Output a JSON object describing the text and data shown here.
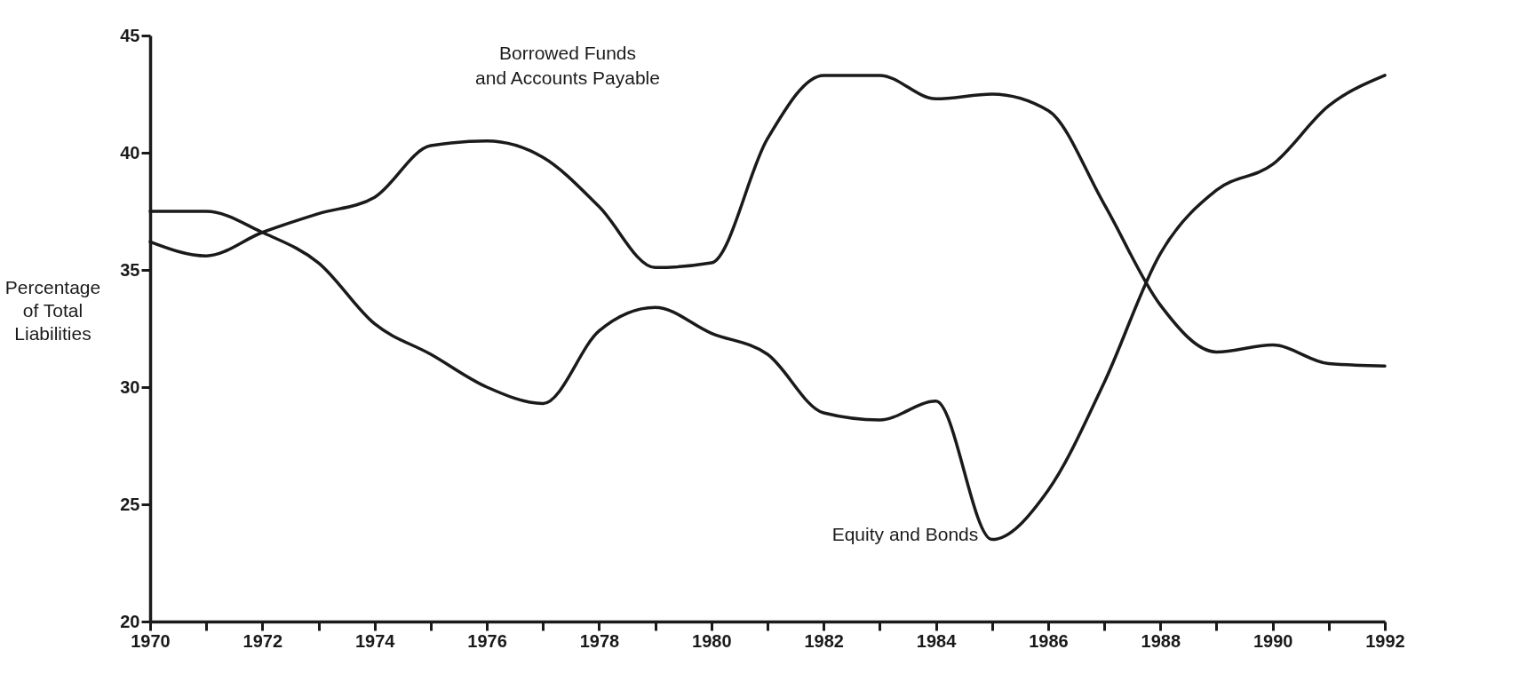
{
  "chart_data": {
    "type": "line",
    "ylabel": "Percentage\nof Total\nLiabilities",
    "x": [
      1970,
      1971,
      1972,
      1973,
      1974,
      1975,
      1976,
      1977,
      1978,
      1979,
      1980,
      1981,
      1982,
      1983,
      1984,
      1985,
      1986,
      1987,
      1988,
      1989,
      1990,
      1991,
      1992
    ],
    "series": [
      {
        "name": "Borrowed Funds\nand Accounts Payable",
        "color": "#1a1a1a",
        "values": [
          36.2,
          35.6,
          36.6,
          37.4,
          38.1,
          40.3,
          40.5,
          39.8,
          37.7,
          35.1,
          35.3,
          40.6,
          43.3,
          43.3,
          42.3,
          42.5,
          41.8,
          37.8,
          33.5,
          31.5,
          31.8,
          31.0,
          30.9
        ]
      },
      {
        "name": "Equity and Bonds",
        "color": "#1a1a1a",
        "values": [
          37.5,
          37.5,
          36.6,
          35.3,
          32.7,
          31.4,
          30.0,
          29.3,
          32.4,
          33.4,
          32.3,
          31.4,
          28.9,
          28.6,
          29.4,
          23.5,
          25.6,
          30.2,
          35.7,
          38.4,
          39.5,
          42.0,
          43.3
        ]
      }
    ],
    "xlim": [
      1970,
      1992
    ],
    "xticks": [
      1970,
      {
        "value": 1971,
        "label": null
      },
      1972,
      {
        "value": 1973,
        "label": null
      },
      1974,
      {
        "value": 1975,
        "label": null
      },
      1976,
      {
        "value": 1977,
        "label": null
      },
      1978,
      {
        "value": 1979,
        "label": null
      },
      1980,
      {
        "value": 1981,
        "label": null
      },
      1982,
      {
        "value": 1983,
        "label": null
      },
      1984,
      {
        "value": 1985,
        "label": null
      },
      1986,
      {
        "value": 1987,
        "label": null
      },
      1988,
      {
        "value": 1989,
        "label": null
      },
      1990,
      {
        "value": 1991,
        "label": null
      },
      1992
    ],
    "ylim": [
      20,
      45
    ],
    "yticks": [
      20,
      25,
      30,
      35,
      40,
      45
    ],
    "grid": false,
    "legend": false,
    "marker": "none",
    "line_style": "solid"
  }
}
